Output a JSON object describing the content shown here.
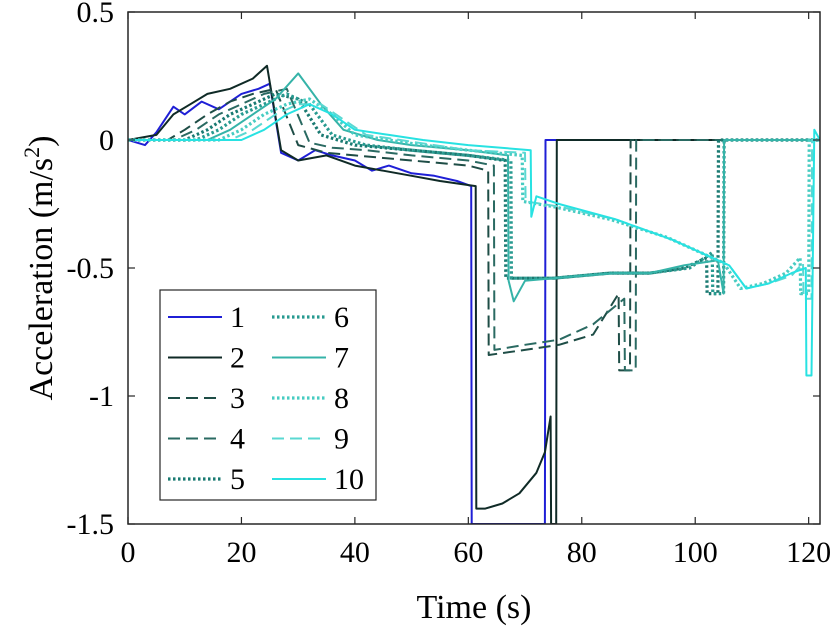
{
  "chart_data": {
    "type": "line",
    "title": "",
    "xlabel": "Time (s)",
    "ylabel": "Acceleration (m/s",
    "ylabel_sup": "2",
    "ylabel_end": ")",
    "xlim": [
      0,
      122
    ],
    "ylim": [
      -1.5,
      0.5
    ],
    "grid": false,
    "legend_position": "bottom-left",
    "xticks": [
      0,
      20,
      40,
      60,
      80,
      100,
      120
    ],
    "yticks": [
      0.5,
      0,
      -0.5,
      -1,
      -1.5
    ],
    "xtick_labels": [
      "0",
      "20",
      "40",
      "60",
      "80",
      "100",
      "120"
    ],
    "ytick_labels": [
      "0.5",
      "0",
      "-0.5",
      "-1",
      "-1.5"
    ],
    "series": [
      {
        "name": "1",
        "color": "#1f1fd6",
        "style": "solid",
        "x": [
          0,
          3,
          5,
          8,
          10,
          13,
          16,
          20,
          23,
          25,
          27,
          30,
          33,
          36,
          40,
          43,
          46,
          50,
          54,
          58,
          60.5,
          60.6,
          73.5,
          73.6,
          122
        ],
        "y": [
          0,
          -0.02,
          0.03,
          0.13,
          0.1,
          0.15,
          0.12,
          0.18,
          0.2,
          0.22,
          -0.05,
          -0.08,
          -0.04,
          -0.06,
          -0.08,
          -0.12,
          -0.1,
          -0.13,
          -0.14,
          -0.16,
          -0.18,
          -1.5,
          -1.5,
          0,
          0
        ]
      },
      {
        "name": "2",
        "color": "#0f2a26",
        "style": "solid",
        "x": [
          0,
          5,
          8,
          11,
          14,
          18,
          22,
          24.5,
          27,
          30,
          35,
          40,
          45,
          50,
          55,
          61.3,
          61.4,
          63,
          66,
          69,
          72,
          73.5,
          74.5,
          74.6,
          75.5,
          75.6,
          122
        ],
        "y": [
          0,
          0.02,
          0.1,
          0.14,
          0.18,
          0.2,
          0.24,
          0.29,
          -0.04,
          -0.08,
          -0.06,
          -0.1,
          -0.12,
          -0.14,
          -0.16,
          -0.18,
          -1.44,
          -1.44,
          -1.42,
          -1.38,
          -1.3,
          -1.22,
          -1.08,
          -1.5,
          -1.5,
          0,
          0
        ]
      },
      {
        "name": "3",
        "color": "#1e4d46",
        "style": "dashed",
        "x": [
          0,
          7,
          10,
          14,
          18,
          22,
          26,
          30,
          35,
          40,
          50,
          60,
          63.5,
          63.6,
          70,
          76,
          82,
          86.5,
          86.6,
          88.5,
          88.6,
          122
        ],
        "y": [
          0,
          0,
          0.04,
          0.1,
          0.15,
          0.18,
          0.2,
          -0.02,
          -0.05,
          -0.06,
          -0.08,
          -0.1,
          -0.12,
          -0.84,
          -0.82,
          -0.8,
          -0.76,
          -0.6,
          -0.9,
          -0.9,
          0,
          0
        ]
      },
      {
        "name": "4",
        "color": "#2a6a62",
        "style": "dashed",
        "x": [
          0,
          8,
          12,
          16,
          20,
          24,
          28,
          32,
          36,
          42,
          50,
          60,
          64.5,
          64.6,
          70,
          76,
          82,
          87.5,
          87.6,
          89.5,
          89.6,
          122
        ],
        "y": [
          0,
          0,
          0.04,
          0.1,
          0.14,
          0.18,
          0.2,
          -0.01,
          -0.03,
          -0.04,
          -0.06,
          -0.08,
          -0.1,
          -0.82,
          -0.8,
          -0.78,
          -0.72,
          -0.62,
          -0.9,
          -0.9,
          0,
          0
        ]
      },
      {
        "name": "5",
        "color": "#1a7a72",
        "style": "dotted",
        "x": [
          0,
          10,
          14,
          18,
          22,
          26,
          30,
          34,
          40,
          50,
          60,
          66.5,
          66.6,
          75,
          85,
          92,
          98,
          102,
          102.1,
          104,
          104.1,
          122
        ],
        "y": [
          0,
          0,
          0.04,
          0.1,
          0.14,
          0.18,
          0.16,
          0.02,
          -0.02,
          -0.04,
          -0.06,
          -0.08,
          -0.54,
          -0.54,
          -0.52,
          -0.52,
          -0.5,
          -0.46,
          -0.6,
          -0.6,
          0,
          0
        ]
      },
      {
        "name": "6",
        "color": "#279a90",
        "style": "dotted",
        "x": [
          0,
          12,
          16,
          20,
          24,
          28,
          32,
          36,
          42,
          50,
          60,
          67.5,
          67.6,
          75,
          85,
          92,
          99,
          103,
          103.1,
          105,
          105.1,
          122
        ],
        "y": [
          0,
          0,
          0.04,
          0.1,
          0.14,
          0.18,
          0.14,
          0.02,
          -0.02,
          -0.04,
          -0.06,
          -0.08,
          -0.54,
          -0.54,
          -0.52,
          -0.52,
          -0.5,
          -0.44,
          -0.6,
          -0.6,
          0,
          0
        ]
      },
      {
        "name": "7",
        "color": "#35b3a8",
        "style": "solid",
        "x": [
          0,
          14,
          18,
          22,
          26,
          30,
          34,
          38,
          44,
          50,
          60,
          67,
          67.1,
          68,
          70,
          75,
          80,
          86,
          92,
          98,
          104,
          105,
          105.1,
          122
        ],
        "y": [
          0,
          0,
          0.04,
          0.1,
          0.16,
          0.26,
          0.14,
          0.04,
          0,
          -0.02,
          -0.04,
          -0.06,
          -0.55,
          -0.63,
          -0.55,
          -0.54,
          -0.53,
          -0.52,
          -0.52,
          -0.49,
          -0.47,
          -0.6,
          0,
          0
        ]
      },
      {
        "name": "8",
        "color": "#48ccc2",
        "style": "dotted",
        "x": [
          0,
          16,
          20,
          24,
          28,
          32,
          36,
          40,
          46,
          52,
          60,
          69.5,
          69.6,
          75,
          85,
          95,
          105,
          108,
          112,
          116,
          118.5,
          118.6,
          120,
          120.1,
          122
        ],
        "y": [
          0,
          0,
          0.04,
          0.1,
          0.14,
          0.16,
          0.1,
          0.02,
          0,
          -0.02,
          -0.04,
          -0.06,
          -0.24,
          -0.26,
          -0.31,
          -0.38,
          -0.48,
          -0.58,
          -0.56,
          -0.52,
          -0.46,
          -0.6,
          -0.6,
          0,
          0
        ]
      },
      {
        "name": "9",
        "color": "#5ad8d2",
        "style": "dashed",
        "x": [
          0,
          18,
          22,
          26,
          30,
          34,
          38,
          42,
          48,
          54,
          60,
          70,
          70.1,
          76,
          86,
          96,
          106,
          109,
          113,
          117,
          119,
          119.1,
          120.5,
          120.6,
          122
        ],
        "y": [
          0,
          0,
          0.04,
          0.1,
          0.14,
          0.14,
          0.08,
          0.02,
          0,
          -0.02,
          -0.04,
          -0.05,
          -0.24,
          -0.26,
          -0.31,
          -0.39,
          -0.49,
          -0.58,
          -0.56,
          -0.53,
          -0.48,
          -0.62,
          -0.62,
          0,
          0
        ]
      },
      {
        "name": "10",
        "color": "#28e2e2",
        "style": "solid",
        "x": [
          0,
          20,
          24,
          28,
          32,
          36,
          40,
          46,
          52,
          60,
          71,
          71.1,
          72,
          76,
          86,
          96,
          106,
          109,
          113,
          117,
          119.5,
          119.6,
          120.5,
          121,
          122
        ],
        "y": [
          0,
          0,
          0.04,
          0.1,
          0.14,
          0.1,
          0.04,
          0.02,
          0,
          -0.02,
          -0.04,
          -0.3,
          -0.22,
          -0.25,
          -0.31,
          -0.39,
          -0.49,
          -0.58,
          -0.56,
          -0.52,
          -0.5,
          -0.92,
          -0.92,
          0.04,
          0
        ]
      }
    ]
  }
}
